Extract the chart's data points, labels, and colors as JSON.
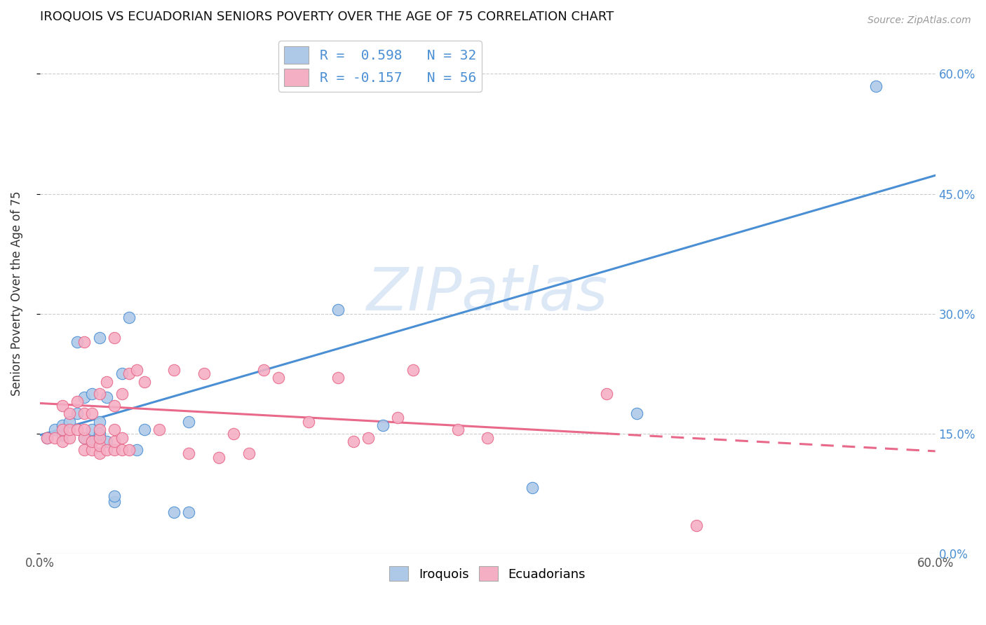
{
  "title": "IROQUOIS VS ECUADORIAN SENIORS POVERTY OVER THE AGE OF 75 CORRELATION CHART",
  "source": "Source: ZipAtlas.com",
  "ylabel": "Seniors Poverty Over the Age of 75",
  "xmin": 0.0,
  "xmax": 0.6,
  "ymin": 0.0,
  "ymax": 0.65,
  "ytick_vals": [
    0.0,
    0.15,
    0.3,
    0.45,
    0.6
  ],
  "ytick_labels": [
    "0.0%",
    "15.0%",
    "30.0%",
    "45.0%",
    "60.0%"
  ],
  "xtick_start_label": "0.0%",
  "xtick_end_label": "60.0%",
  "iroquois_R": 0.598,
  "iroquois_N": 32,
  "ecuadorian_R": -0.157,
  "ecuadorian_N": 56,
  "iroquois_color": "#aec9e8",
  "ecuadorian_color": "#f4afc4",
  "iroquois_line_color": "#4a8fd4",
  "ecuadorian_line_color": "#e8698a",
  "watermark_text": "ZIPatlas",
  "watermark_color": "#dce8f5",
  "background_color": "#ffffff",
  "grid_color": "#cccccc",
  "legend_label_iroquois": "Iroquois",
  "legend_label_ecuadorians": "Ecuadorians",
  "iroquois_x": [
    0.005,
    0.01,
    0.015,
    0.015,
    0.02,
    0.025,
    0.025,
    0.03,
    0.03,
    0.035,
    0.035,
    0.035,
    0.04,
    0.04,
    0.04,
    0.04,
    0.045,
    0.045,
    0.05,
    0.05,
    0.055,
    0.06,
    0.065,
    0.07,
    0.09,
    0.1,
    0.1,
    0.2,
    0.23,
    0.33,
    0.4,
    0.56
  ],
  "iroquois_y": [
    0.145,
    0.155,
    0.148,
    0.16,
    0.165,
    0.175,
    0.265,
    0.145,
    0.195,
    0.14,
    0.155,
    0.2,
    0.145,
    0.15,
    0.165,
    0.27,
    0.14,
    0.195,
    0.065,
    0.072,
    0.225,
    0.295,
    0.13,
    0.155,
    0.052,
    0.165,
    0.052,
    0.305,
    0.16,
    0.082,
    0.175,
    0.585
  ],
  "ecuadorian_x": [
    0.005,
    0.01,
    0.015,
    0.015,
    0.015,
    0.02,
    0.02,
    0.02,
    0.025,
    0.025,
    0.03,
    0.03,
    0.03,
    0.03,
    0.03,
    0.035,
    0.035,
    0.035,
    0.04,
    0.04,
    0.04,
    0.04,
    0.04,
    0.045,
    0.045,
    0.05,
    0.05,
    0.05,
    0.05,
    0.05,
    0.055,
    0.055,
    0.055,
    0.06,
    0.06,
    0.065,
    0.07,
    0.08,
    0.09,
    0.1,
    0.11,
    0.12,
    0.13,
    0.14,
    0.15,
    0.16,
    0.18,
    0.2,
    0.21,
    0.22,
    0.24,
    0.25,
    0.28,
    0.3,
    0.38,
    0.44
  ],
  "ecuadorian_y": [
    0.145,
    0.145,
    0.14,
    0.155,
    0.185,
    0.145,
    0.155,
    0.175,
    0.155,
    0.19,
    0.13,
    0.145,
    0.155,
    0.175,
    0.265,
    0.13,
    0.14,
    0.175,
    0.125,
    0.135,
    0.145,
    0.155,
    0.2,
    0.13,
    0.215,
    0.13,
    0.14,
    0.155,
    0.185,
    0.27,
    0.13,
    0.145,
    0.2,
    0.13,
    0.225,
    0.23,
    0.215,
    0.155,
    0.23,
    0.125,
    0.225,
    0.12,
    0.15,
    0.125,
    0.23,
    0.22,
    0.165,
    0.22,
    0.14,
    0.145,
    0.17,
    0.23,
    0.155,
    0.145,
    0.2,
    0.035
  ],
  "ecuadorian_dash_cutoff": 0.38,
  "iroquois_trend_x0": 0.0,
  "iroquois_trend_x1": 0.6,
  "iroquois_trend_y0": 0.148,
  "iroquois_trend_y1": 0.473,
  "ecuadorian_trend_x0": 0.0,
  "ecuadorian_trend_x1": 0.6,
  "ecuadorian_trend_y0": 0.188,
  "ecuadorian_trend_y1": 0.128
}
